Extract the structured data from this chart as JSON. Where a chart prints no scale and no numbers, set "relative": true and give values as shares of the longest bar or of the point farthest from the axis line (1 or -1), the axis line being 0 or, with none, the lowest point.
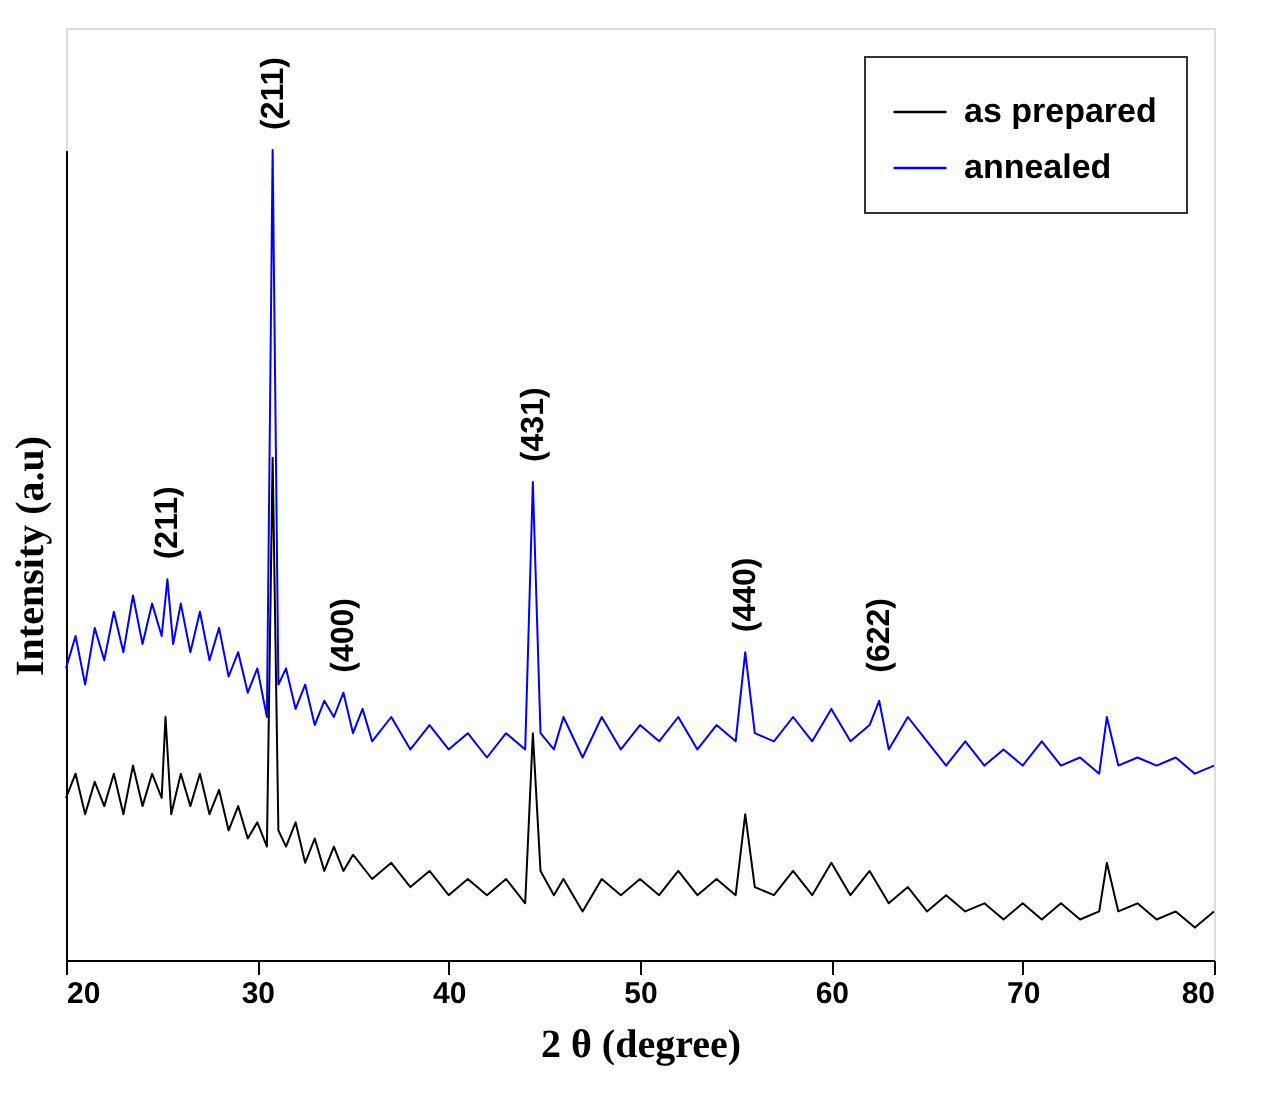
{
  "chart_data": {
    "type": "line",
    "relative": true,
    "xlabel": "2 θ (degree)",
    "ylabel": "Intensity (a.u)",
    "xlim": [
      20,
      80
    ],
    "xticks": [
      20,
      30,
      40,
      50,
      60,
      70,
      80
    ],
    "grid": false,
    "legend": "top right",
    "marker": "none",
    "line_style": "solid",
    "tick_labels": "x",
    "series": [
      {
        "name": "as prepared",
        "color": "#000000",
        "x": [
          20,
          20.5,
          21,
          21.5,
          22,
          22.5,
          23,
          23.5,
          24,
          24.5,
          25,
          25.2,
          25.5,
          26,
          26.5,
          27,
          27.5,
          28,
          28.5,
          29,
          29.5,
          30,
          30.5,
          30.8,
          31.1,
          31.5,
          32,
          32.5,
          33,
          33.5,
          34,
          34.5,
          35,
          36,
          37,
          38,
          39,
          40,
          41,
          42,
          43,
          44,
          44.4,
          44.8,
          45.5,
          46,
          47,
          48,
          49,
          50,
          51,
          52,
          53,
          54,
          55,
          55.5,
          56,
          57,
          58,
          59,
          60,
          61,
          62,
          63,
          64,
          65,
          66,
          67,
          68,
          69,
          70,
          71,
          72,
          73,
          74,
          74.4,
          75,
          76,
          77,
          78,
          79,
          80
        ],
        "values": [
          0.2,
          0.23,
          0.18,
          0.22,
          0.19,
          0.23,
          0.18,
          0.24,
          0.19,
          0.23,
          0.2,
          0.3,
          0.18,
          0.23,
          0.19,
          0.23,
          0.18,
          0.21,
          0.16,
          0.19,
          0.15,
          0.17,
          0.14,
          0.62,
          0.16,
          0.14,
          0.17,
          0.12,
          0.15,
          0.11,
          0.14,
          0.11,
          0.13,
          0.1,
          0.12,
          0.09,
          0.11,
          0.08,
          0.1,
          0.08,
          0.1,
          0.07,
          0.28,
          0.11,
          0.08,
          0.1,
          0.06,
          0.1,
          0.08,
          0.1,
          0.08,
          0.11,
          0.08,
          0.1,
          0.08,
          0.18,
          0.09,
          0.08,
          0.11,
          0.08,
          0.12,
          0.08,
          0.11,
          0.07,
          0.09,
          0.06,
          0.08,
          0.06,
          0.07,
          0.05,
          0.07,
          0.05,
          0.07,
          0.05,
          0.06,
          0.12,
          0.06,
          0.07,
          0.05,
          0.06,
          0.04,
          0.06
        ]
      },
      {
        "name": "annealed",
        "color": "#0000ff",
        "x": [
          20,
          20.5,
          21,
          21.5,
          22,
          22.5,
          23,
          23.5,
          24,
          24.5,
          25,
          25.3,
          25.6,
          26,
          26.5,
          27,
          27.5,
          28,
          28.5,
          29,
          29.5,
          30,
          30.5,
          30.8,
          31.1,
          31.5,
          32,
          32.5,
          33,
          33.5,
          34,
          34.5,
          35,
          35.5,
          36,
          37,
          38,
          39,
          40,
          41,
          42,
          43,
          44,
          44.4,
          44.8,
          45.5,
          46,
          47,
          48,
          49,
          50,
          51,
          52,
          53,
          54,
          55,
          55.5,
          56,
          57,
          58,
          59,
          60,
          61,
          62,
          62.5,
          63,
          64,
          65,
          66,
          67,
          68,
          69,
          70,
          71,
          72,
          73,
          74,
          74.4,
          75,
          76,
          77,
          78,
          79,
          80
        ],
        "values": [
          0.36,
          0.4,
          0.34,
          0.41,
          0.37,
          0.43,
          0.38,
          0.45,
          0.39,
          0.44,
          0.4,
          0.47,
          0.39,
          0.44,
          0.38,
          0.43,
          0.37,
          0.41,
          0.35,
          0.38,
          0.33,
          0.36,
          0.3,
          1.0,
          0.34,
          0.36,
          0.31,
          0.34,
          0.29,
          0.32,
          0.3,
          0.33,
          0.28,
          0.31,
          0.27,
          0.3,
          0.26,
          0.29,
          0.26,
          0.28,
          0.25,
          0.28,
          0.26,
          0.59,
          0.28,
          0.26,
          0.3,
          0.25,
          0.3,
          0.26,
          0.29,
          0.27,
          0.3,
          0.26,
          0.29,
          0.27,
          0.38,
          0.28,
          0.27,
          0.3,
          0.27,
          0.31,
          0.27,
          0.29,
          0.32,
          0.26,
          0.3,
          0.27,
          0.24,
          0.27,
          0.24,
          0.26,
          0.24,
          0.27,
          0.24,
          0.25,
          0.23,
          0.3,
          0.24,
          0.25,
          0.24,
          0.25,
          0.23,
          0.24
        ]
      }
    ],
    "annotations": [
      {
        "text": "(211)",
        "x": 25.3,
        "y": 0.47
      },
      {
        "text": "(211)",
        "x": 30.8,
        "y": 1.0
      },
      {
        "text": "(400)",
        "x": 34.5,
        "y": 0.33
      },
      {
        "text": "(431)",
        "x": 44.4,
        "y": 0.59
      },
      {
        "text": "(440)",
        "x": 55.5,
        "y": 0.38
      },
      {
        "text": "(622)",
        "x": 62.5,
        "y": 0.33
      }
    ]
  }
}
